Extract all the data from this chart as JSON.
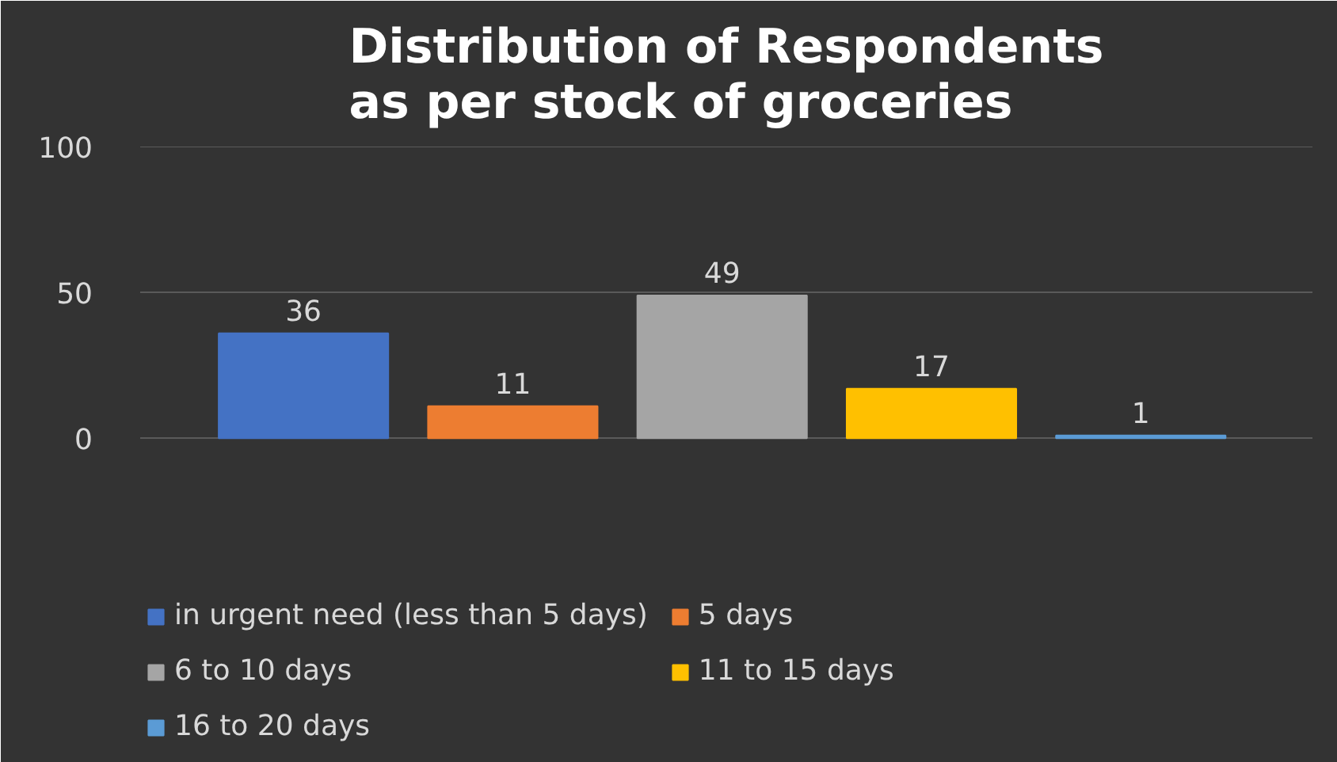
{
  "chart_data": {
    "type": "bar",
    "title": "Distribution of Respondents as per stock of groceries",
    "categories": [
      null
    ],
    "series": [
      {
        "name": "in urgent need (less than 5 days)",
        "color": "#4472c4",
        "values": [
          36
        ]
      },
      {
        "name": "5 days",
        "color": "#ed7d31",
        "values": [
          11
        ]
      },
      {
        "name": "6 to 10 days",
        "color": "#a5a5a5",
        "values": [
          49
        ]
      },
      {
        "name": "11 to 15 days",
        "color": "#ffc000",
        "values": [
          17
        ]
      },
      {
        "name": "16 to 20 days",
        "color": "#5b9bd5",
        "values": [
          1
        ]
      }
    ],
    "ylim": [
      0,
      100
    ],
    "yticks": [
      0,
      50,
      100
    ],
    "grid": "y",
    "legend": "bottom",
    "data_labels": true
  }
}
